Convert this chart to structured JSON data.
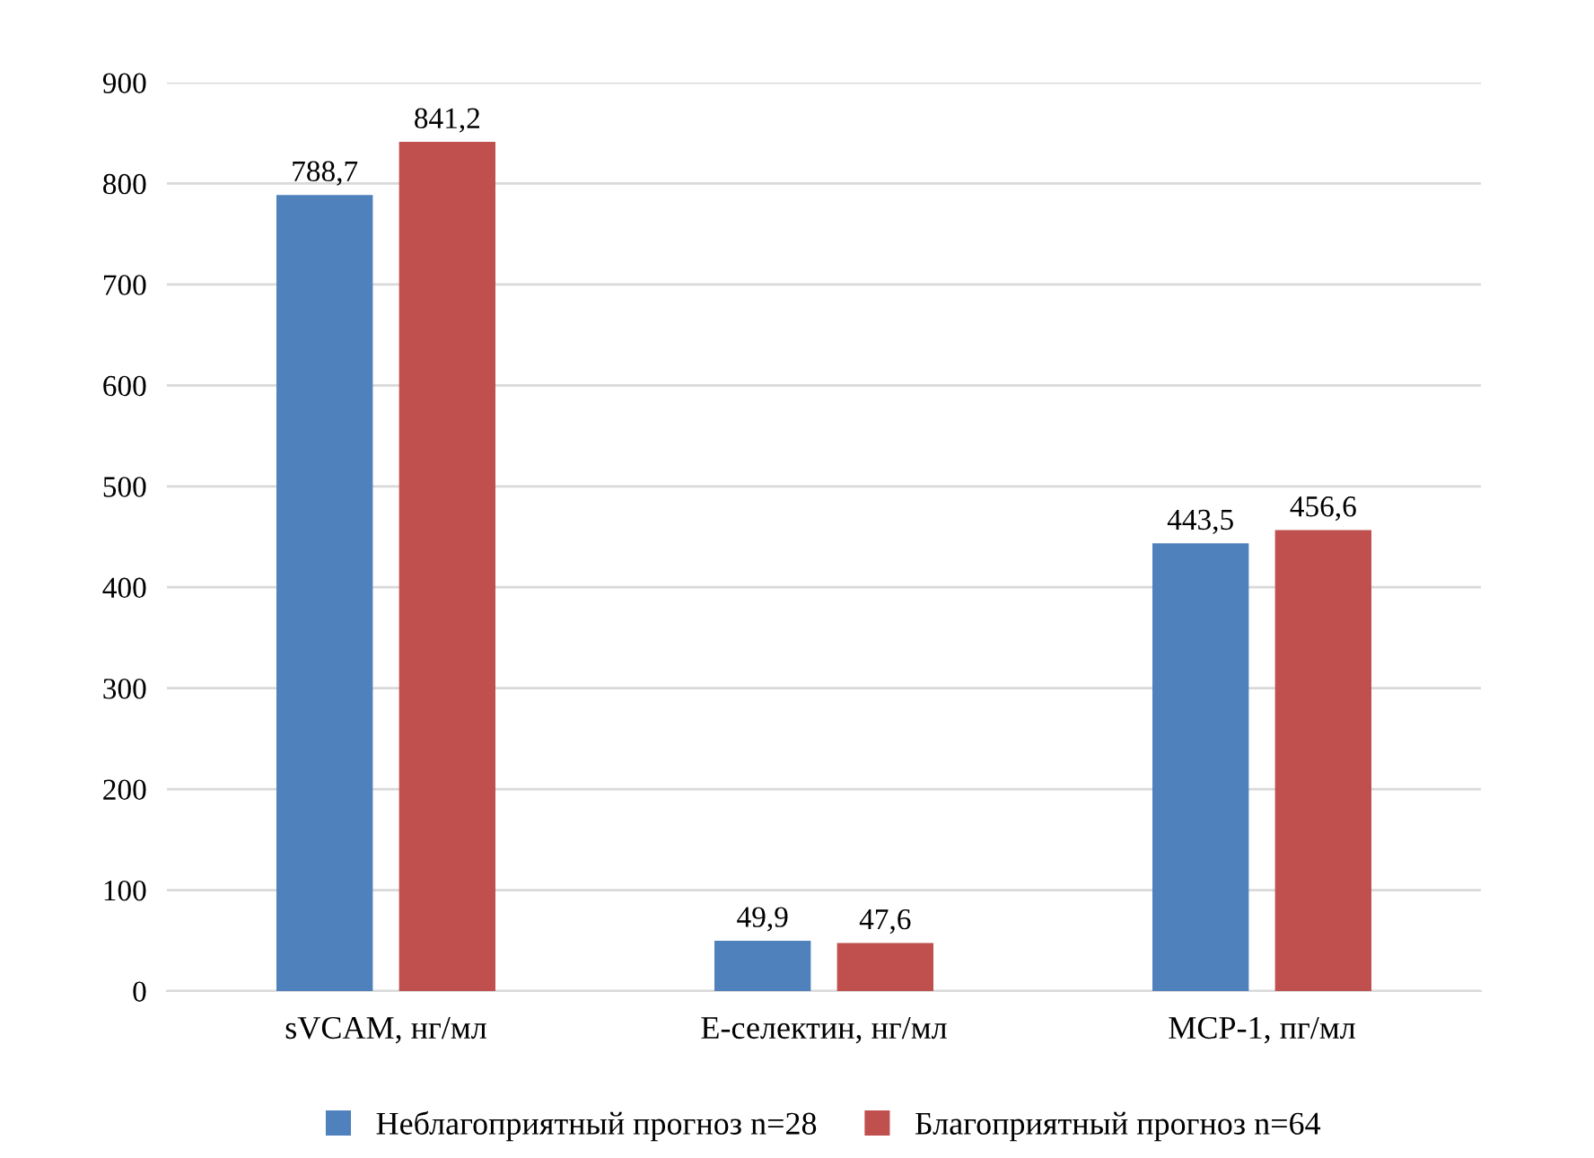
{
  "chart_data": {
    "type": "bar",
    "categories": [
      "sVCAM, нг/мл",
      "Е-селектин, нг/мл",
      "МСР-1, пг/мл"
    ],
    "series": [
      {
        "name": "Неблагоприятный прогноз n=28",
        "color": "#4f81bd",
        "values": [
          788.7,
          49.9,
          443.5
        ],
        "value_labels": [
          "788,7",
          "49,9",
          "443,5"
        ]
      },
      {
        "name": "Благоприятный прогноз n=64",
        "color": "#c0504d",
        "values": [
          841.2,
          47.6,
          456.6
        ],
        "value_labels": [
          "841,2",
          "47,6",
          "456,6"
        ]
      }
    ],
    "ylim": [
      0,
      900
    ],
    "yticks": [
      0,
      100,
      200,
      300,
      400,
      500,
      600,
      700,
      800,
      900
    ],
    "grid": "y",
    "legend": "bottom"
  }
}
